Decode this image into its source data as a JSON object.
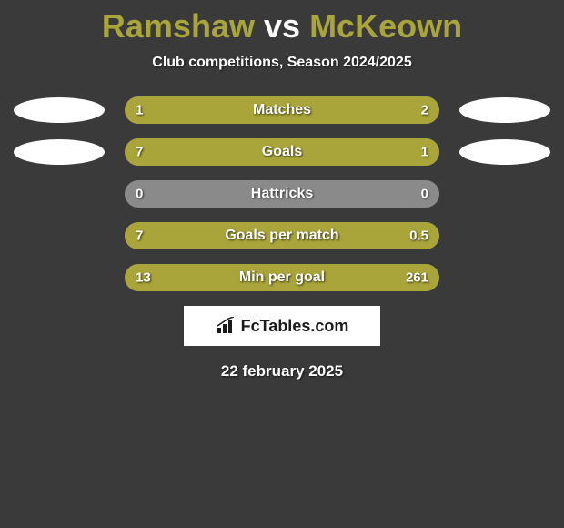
{
  "title": {
    "player1": "Ramshaw",
    "vs": "vs",
    "player2": "McKeown",
    "player1_color": "#a9a53a",
    "vs_color": "#ffffff",
    "player2_color": "#a9a53a"
  },
  "subtitle": "Club competitions, Season 2024/2025",
  "bar_colors": {
    "left_fill": "#a9a53a",
    "right_fill": "#a9a53a",
    "empty": "#8a8a8a"
  },
  "badge_color": "#ffffff",
  "stats": [
    {
      "name": "Matches",
      "left_value": "1",
      "right_value": "2",
      "left_pct": 33,
      "right_pct": 67,
      "show_left_badge": true,
      "show_right_badge": true
    },
    {
      "name": "Goals",
      "left_value": "7",
      "right_value": "1",
      "left_pct": 78,
      "right_pct": 22,
      "show_left_badge": true,
      "show_right_badge": true
    },
    {
      "name": "Hattricks",
      "left_value": "0",
      "right_value": "0",
      "left_pct": 0,
      "right_pct": 0,
      "show_left_badge": false,
      "show_right_badge": false
    },
    {
      "name": "Goals per match",
      "left_value": "7",
      "right_value": "0.5",
      "left_pct": 80,
      "right_pct": 20,
      "show_left_badge": false,
      "show_right_badge": false
    },
    {
      "name": "Min per goal",
      "left_value": "13",
      "right_value": "261",
      "left_pct": 11,
      "right_pct": 89,
      "show_left_badge": false,
      "show_right_badge": false
    }
  ],
  "logo_text": "FcTables.com",
  "footer_date": "22 february 2025"
}
